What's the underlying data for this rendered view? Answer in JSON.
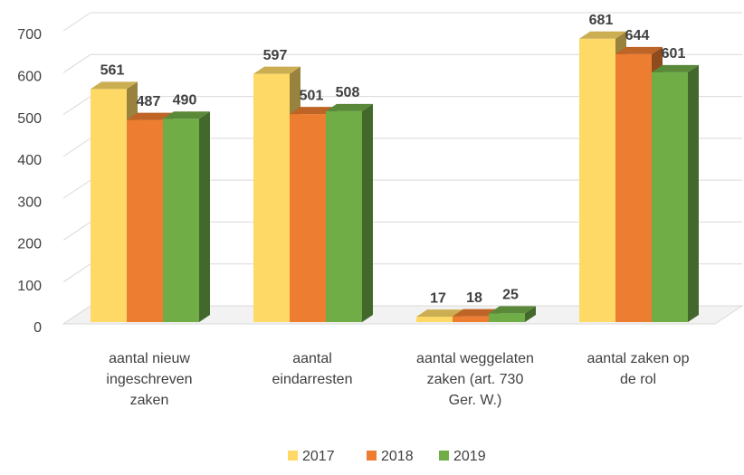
{
  "chart_data": {
    "type": "bar3d",
    "categories": [
      [
        "aantal nieuw",
        "ingeschreven",
        "zaken"
      ],
      [
        "aantal",
        "eindarresten"
      ],
      [
        "aantal weggelaten",
        "zaken (art. 730",
        "Ger. W.)"
      ],
      [
        "aantal zaken op",
        "de rol"
      ]
    ],
    "series": [
      {
        "name": "2017",
        "color": "#ffd966",
        "values": [
          561,
          597,
          17,
          681
        ]
      },
      {
        "name": "2018",
        "color": "#ed7d31",
        "values": [
          487,
          501,
          18,
          644
        ]
      },
      {
        "name": "2019",
        "color": "#70ad47",
        "values": [
          490,
          508,
          25,
          601
        ]
      }
    ],
    "ylim": [
      0,
      700
    ],
    "yticks": [
      0,
      100,
      200,
      300,
      400,
      500,
      600,
      700
    ],
    "grid": true,
    "legend": "bottom"
  }
}
